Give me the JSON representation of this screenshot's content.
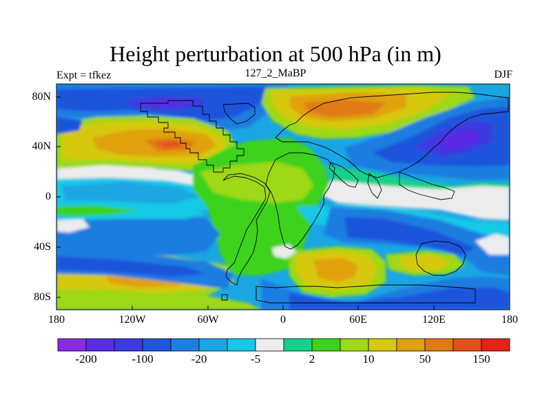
{
  "figure": {
    "title": "Height perturbation at 500 hPa (in m)",
    "left_label": "Expt = tfkez",
    "center_label": "127_2_MaBP",
    "right_label": "DJF"
  },
  "axes": {
    "lat_ticks": [
      "80N",
      "40N",
      "0",
      "40S",
      "80S"
    ],
    "lon_ticks": [
      "180",
      "120W",
      "60W",
      "0",
      "60E",
      "120E",
      "180"
    ]
  },
  "colorbar": {
    "labels": [
      "-200",
      "-100",
      "-20",
      "-5",
      "2",
      "10",
      "50",
      "150"
    ],
    "colors": [
      "#8a2be2",
      "#5a2be6",
      "#3a3ae0",
      "#1f55dc",
      "#1e7de0",
      "#1aa6e2",
      "#14c9e6",
      "#ececec",
      "#14d18a",
      "#3cd21a",
      "#9ed817",
      "#d6c90e",
      "#e0a10e",
      "#e07a12",
      "#e4501a",
      "#e42218"
    ]
  },
  "palette": {
    "deep_purple": "#5a2be6",
    "blue": "#1f55dc",
    "mid_blue": "#1e7de0",
    "cyan": "#14c9e6",
    "neutral": "#ececec",
    "green": "#3cd21a",
    "yellow": "#d6c90e",
    "orange": "#e0a10e",
    "red": "#e42218"
  }
}
